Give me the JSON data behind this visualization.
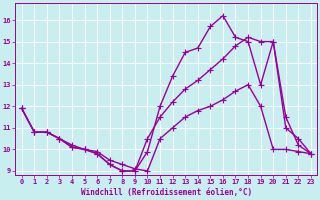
{
  "xlabel": "Windchill (Refroidissement éolien,°C)",
  "bg_color": "#c8eef0",
  "line_color": "#990099",
  "grid_color": "#ffffff",
  "xlim": [
    -0.5,
    23.5
  ],
  "ylim": [
    8.8,
    16.8
  ],
  "xticks": [
    0,
    1,
    2,
    3,
    4,
    5,
    6,
    7,
    8,
    9,
    10,
    11,
    12,
    13,
    14,
    15,
    16,
    17,
    18,
    19,
    20,
    21,
    22,
    23
  ],
  "yticks": [
    9,
    10,
    11,
    12,
    13,
    14,
    15,
    16
  ],
  "line1_x": [
    0,
    1,
    2,
    3,
    4,
    5,
    6,
    7,
    8,
    9,
    10,
    11,
    12,
    13,
    14,
    15,
    16,
    17,
    18,
    19,
    20,
    21,
    22,
    23
  ],
  "line1_y": [
    11.9,
    10.8,
    10.8,
    10.5,
    10.1,
    10.0,
    9.8,
    9.3,
    9.0,
    9.0,
    9.9,
    12.0,
    13.4,
    14.5,
    14.7,
    15.7,
    16.2,
    15.2,
    15.0,
    13.0,
    15.0,
    11.0,
    10.5,
    9.8
  ],
  "line2_x": [
    0,
    1,
    2,
    3,
    4,
    5,
    6,
    7,
    8,
    9,
    10,
    11,
    12,
    13,
    14,
    15,
    16,
    17,
    18,
    19,
    20,
    21,
    22,
    23
  ],
  "line2_y": [
    11.9,
    10.8,
    10.8,
    10.5,
    10.1,
    10.0,
    9.8,
    9.3,
    9.0,
    9.0,
    10.5,
    11.5,
    12.2,
    12.8,
    13.2,
    13.7,
    14.2,
    14.8,
    15.2,
    15.0,
    15.0,
    11.5,
    10.2,
    9.8
  ],
  "line3_x": [
    0,
    1,
    2,
    3,
    4,
    5,
    6,
    7,
    8,
    9,
    10,
    11,
    12,
    13,
    14,
    15,
    16,
    17,
    18,
    19,
    20,
    21,
    22,
    23
  ],
  "line3_y": [
    11.9,
    10.8,
    10.8,
    10.5,
    10.2,
    10.0,
    9.9,
    9.5,
    9.3,
    9.1,
    9.0,
    10.5,
    11.0,
    11.5,
    11.8,
    12.0,
    12.3,
    12.7,
    13.0,
    12.0,
    10.0,
    10.0,
    9.9,
    9.8
  ],
  "marker": "+",
  "markersize": 4,
  "linewidth": 1.0
}
